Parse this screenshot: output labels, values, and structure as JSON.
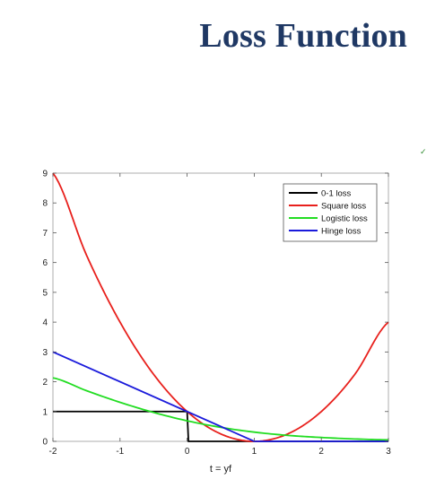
{
  "slide": {
    "title": "Loss Function",
    "title_color": "#1f3864"
  },
  "chart_data": {
    "type": "line",
    "title": "",
    "xlabel": "t = yf",
    "ylabel": "",
    "xlim": [
      -2,
      3
    ],
    "ylim": [
      0,
      9
    ],
    "xticks": [
      -2,
      -1,
      0,
      1,
      2,
      3
    ],
    "yticks": [
      0,
      1,
      2,
      3,
      4,
      5,
      6,
      7,
      8,
      9
    ],
    "grid": false,
    "legend_position": "top-right",
    "series": [
      {
        "name": "0-1 loss",
        "color": "#000000",
        "x": [
          -2,
          -0.01,
          0,
          0.02,
          3
        ],
        "y": [
          1,
          1,
          1,
          0,
          0
        ]
      },
      {
        "name": "Square loss",
        "color": "#e8201c",
        "x": [
          -2,
          -1.5,
          -1,
          -0.5,
          0,
          0.5,
          1,
          1.5,
          2,
          2.5,
          3
        ],
        "y": [
          9,
          6.25,
          4,
          2.25,
          1,
          0.25,
          0,
          0.25,
          1,
          2.25,
          4
        ]
      },
      {
        "name": "Logistic loss",
        "color": "#22dd22",
        "x": [
          -2,
          -1.5,
          -1,
          -0.5,
          0,
          0.5,
          1,
          1.5,
          2,
          2.5,
          3
        ],
        "y": [
          2.13,
          1.7,
          1.31,
          0.97,
          0.69,
          0.47,
          0.31,
          0.2,
          0.13,
          0.08,
          0.05
        ]
      },
      {
        "name": "Hinge loss",
        "color": "#1a1adb",
        "x": [
          -2,
          1,
          3
        ],
        "y": [
          3,
          0,
          0
        ]
      }
    ]
  }
}
